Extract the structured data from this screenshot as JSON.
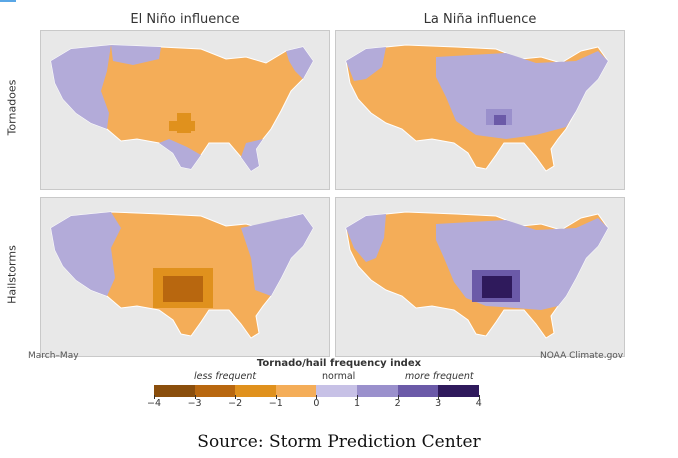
{
  "titles": {
    "el_nino": "El Niño influence",
    "la_nina": "La Niña influence"
  },
  "rows": {
    "tornadoes": "Tornadoes",
    "hailstorms": "Hailstorms"
  },
  "footer": {
    "season": "March–May",
    "credit": "NOAA Climate.gov"
  },
  "legend": {
    "title": "Tornado/hail frequency index",
    "less": "less frequent",
    "normal": "normal",
    "more": "more frequent",
    "ticks": [
      "−4",
      "−3",
      "−2",
      "−1",
      "0",
      "1",
      "2",
      "3",
      "4"
    ],
    "colors": [
      "#8a4e0c",
      "#b8670f",
      "#e0911d",
      "#f4ad58",
      "#c7c1e6",
      "#9a90cc",
      "#6b5aa8",
      "#2f1a5c"
    ]
  },
  "map_colors": {
    "ocean": "#e8e8e8",
    "land_border": "#ffffff",
    "normal_orange": "#f4ad58",
    "normal_purple": "#b3abd9"
  },
  "source": "Source: Storm Prediction Center"
}
